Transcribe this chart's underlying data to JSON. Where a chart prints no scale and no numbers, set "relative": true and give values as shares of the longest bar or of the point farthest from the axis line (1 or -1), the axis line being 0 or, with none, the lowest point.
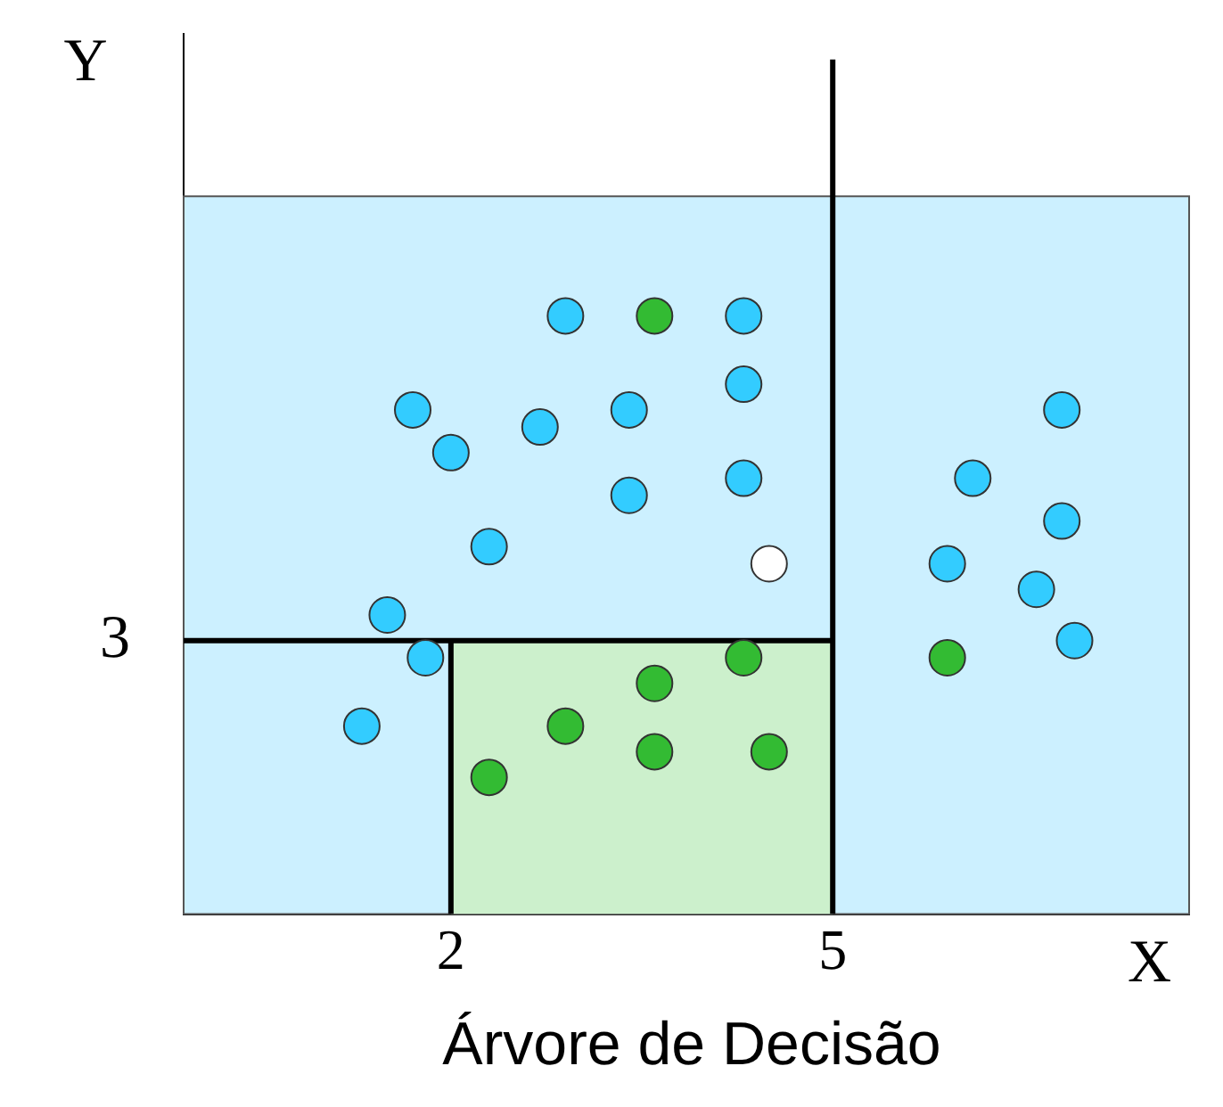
{
  "chart_data": {
    "type": "scatter",
    "title": "Árvore de Decisão",
    "xlabel": "X",
    "ylabel": "Y",
    "xlim": [
      -0.1,
      7.8
    ],
    "xticks": [
      2,
      5
    ],
    "relative": true,
    "grid": false,
    "legend": false,
    "marker": "circle",
    "annotations": [
      "3"
    ],
    "bands": [
      {
        "axis": "y",
        "from": 0,
        "to": 0.84,
        "color": "#ccf0ff"
      }
    ],
    "series": [
      {
        "type": "area",
        "marker": "none",
        "color": "#ccf0cc",
        "x": [
          2,
          5
        ],
        "values": [
          0.32,
          0.32
        ]
      },
      {
        "type": "line",
        "marker": "none",
        "color": "#000000",
        "x": [
          2,
          2
        ],
        "values": [
          0,
          0.32
        ]
      },
      {
        "type": "line",
        "marker": "none",
        "color": "#000000",
        "x": [
          -0.1,
          5
        ],
        "values": [
          0.32,
          0.32
        ]
      },
      {
        "type": "line",
        "marker": "none",
        "color": "#000000",
        "x": [
          5,
          5
        ],
        "values": [
          0,
          1
        ]
      },
      {
        "color": "#33ccff",
        "x": [
          2.9,
          4.3,
          1.7,
          2.0,
          2.7,
          3.4,
          4.3,
          4.3,
          3.4,
          2.3,
          1.5,
          1.8,
          1.3,
          6.8,
          6.1,
          6.8,
          5.9,
          6.6,
          6.9
        ],
        "values": [
          0.7,
          0.7,
          0.59,
          0.54,
          0.57,
          0.59,
          0.62,
          0.51,
          0.49,
          0.43,
          0.35,
          0.3,
          0.22,
          0.59,
          0.51,
          0.46,
          0.41,
          0.38,
          0.32
        ]
      },
      {
        "color": "#33bb33",
        "x": [
          3.6,
          4.3,
          3.6,
          2.9,
          3.6,
          4.5,
          2.3,
          5.9
        ],
        "values": [
          0.7,
          0.3,
          0.27,
          0.22,
          0.19,
          0.19,
          0.16,
          0.3
        ]
      },
      {
        "color": "#ffffff",
        "x": [
          4.5
        ],
        "values": [
          0.41
        ]
      }
    ]
  }
}
